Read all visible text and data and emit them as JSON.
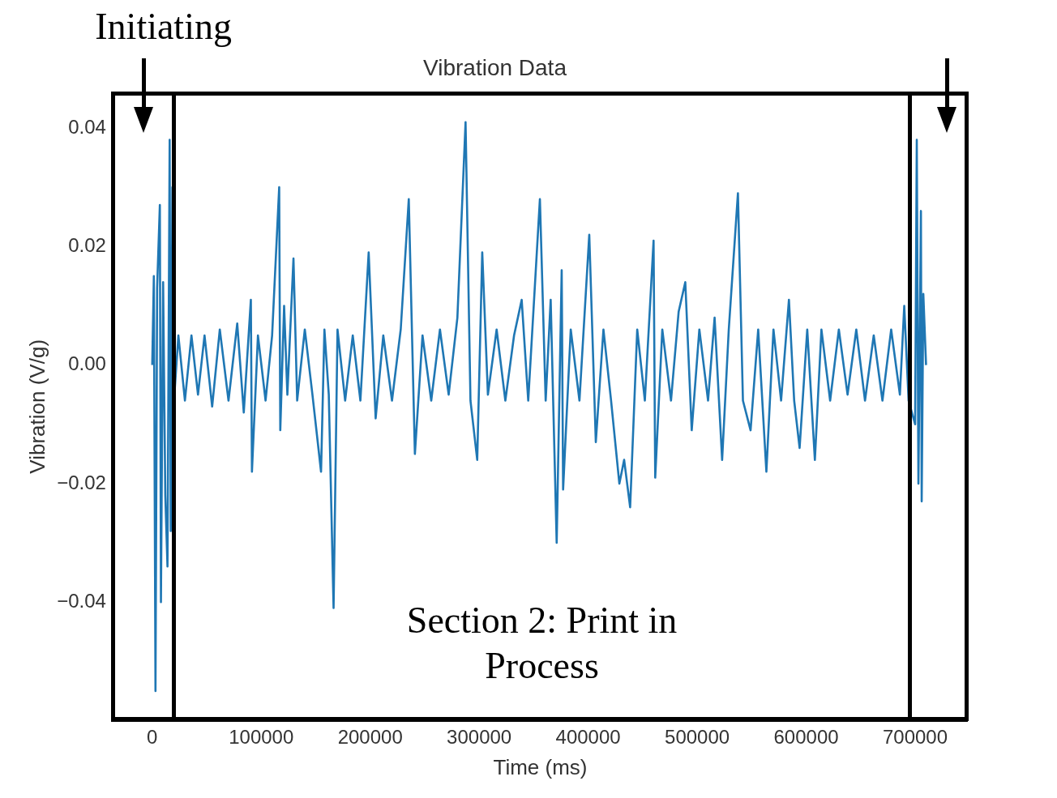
{
  "chart_data": {
    "type": "line",
    "title": "Vibration Data",
    "xlabel": "Time (ms)",
    "ylabel": "Vibration (V/g)",
    "x": [
      0,
      1500,
      3000,
      4500,
      7000,
      8000,
      10000,
      12000,
      14000,
      16000,
      17000,
      18500,
      20000,
      24000,
      30000,
      36000,
      42000,
      48000,
      55000,
      62000,
      70000,
      78000,
      84000,
      90500,
      91500,
      97000,
      104000,
      110000,
      116500,
      117500,
      121000,
      124000,
      129600,
      133000,
      140000,
      147000,
      154900,
      158000,
      162000,
      166400,
      170000,
      177000,
      184000,
      191000,
      198600,
      205000,
      212000,
      220000,
      228000,
      235400,
      241000,
      248000,
      256000,
      264000,
      272000,
      280000,
      287500,
      292000,
      298200,
      302800,
      308000,
      316000,
      324000,
      332000,
      339000,
      345000,
      355700,
      361000,
      365600,
      371100,
      375700,
      377000,
      384000,
      392000,
      401000,
      407000,
      414000,
      421000,
      428600,
      433000,
      438500,
      445000,
      452000,
      460000,
      461500,
      468000,
      476000,
      483000,
      489100,
      495000,
      502000,
      510000,
      516000,
      522900,
      529000,
      537400,
      542000,
      549000,
      556000,
      563500,
      570000,
      577000,
      584200,
      589000,
      594000,
      601000,
      608000,
      614000,
      622000,
      630000,
      638000,
      646000,
      654000,
      662000,
      670000,
      678000,
      686000,
      690000,
      694000,
      700000,
      701500,
      703000,
      705300,
      706000,
      707500,
      710000
    ],
    "series": [
      {
        "color": "#1f77b4",
        "values": [
          0,
          0.015,
          -0.055,
          0.013,
          0.027,
          -0.04,
          0.014,
          -0.022,
          -0.034,
          0.038,
          -0.028,
          0.03,
          -0.006,
          0.005,
          -0.006,
          0.005,
          -0.005,
          0.005,
          -0.007,
          0.006,
          -0.006,
          0.007,
          -0.008,
          0.011,
          -0.018,
          0.005,
          -0.006,
          0.005,
          0.03,
          -0.011,
          0.01,
          -0.005,
          0.018,
          -0.006,
          0.006,
          -0.005,
          -0.018,
          0.006,
          -0.005,
          -0.041,
          0.006,
          -0.006,
          0.005,
          -0.006,
          0.019,
          -0.009,
          0.005,
          -0.006,
          0.006,
          0.028,
          -0.015,
          0.005,
          -0.006,
          0.006,
          -0.005,
          0.008,
          0.041,
          -0.006,
          -0.016,
          0.019,
          -0.005,
          0.006,
          -0.006,
          0.005,
          0.011,
          -0.006,
          0.028,
          -0.006,
          0.011,
          -0.03,
          0.016,
          -0.021,
          0.006,
          -0.006,
          0.022,
          -0.013,
          0.006,
          -0.006,
          -0.02,
          -0.016,
          -0.024,
          0.006,
          -0.006,
          0.021,
          -0.019,
          0.006,
          -0.006,
          0.009,
          0.014,
          -0.011,
          0.006,
          -0.006,
          0.008,
          -0.016,
          0.006,
          0.029,
          -0.006,
          -0.011,
          0.006,
          -0.018,
          0.006,
          -0.006,
          0.011,
          -0.006,
          -0.014,
          0.006,
          -0.016,
          0.006,
          -0.006,
          0.006,
          -0.005,
          0.006,
          -0.006,
          0.005,
          -0.006,
          0.006,
          -0.005,
          0.01,
          -0.006,
          -0.01,
          0.038,
          -0.02,
          0.026,
          -0.023,
          0.012,
          0
        ]
      }
    ],
    "xlim": [
      -35600,
      747600
    ],
    "xticks": [
      0,
      100000,
      200000,
      300000,
      400000,
      500000,
      600000,
      700000
    ],
    "ylim": [
      -0.0598,
      0.0458
    ],
    "yticks": [
      {
        "value": -0.04,
        "label": "−0.04"
      },
      {
        "value": -0.02,
        "label": "−0.02"
      },
      {
        "value": 0,
        "label": "0.00"
      },
      0.02,
      0.04
    ],
    "annotations": [
      "Initiating",
      "Section 2: Print in Process"
    ],
    "marker": "none",
    "line_style": "solid",
    "grid": false,
    "legend": false
  }
}
